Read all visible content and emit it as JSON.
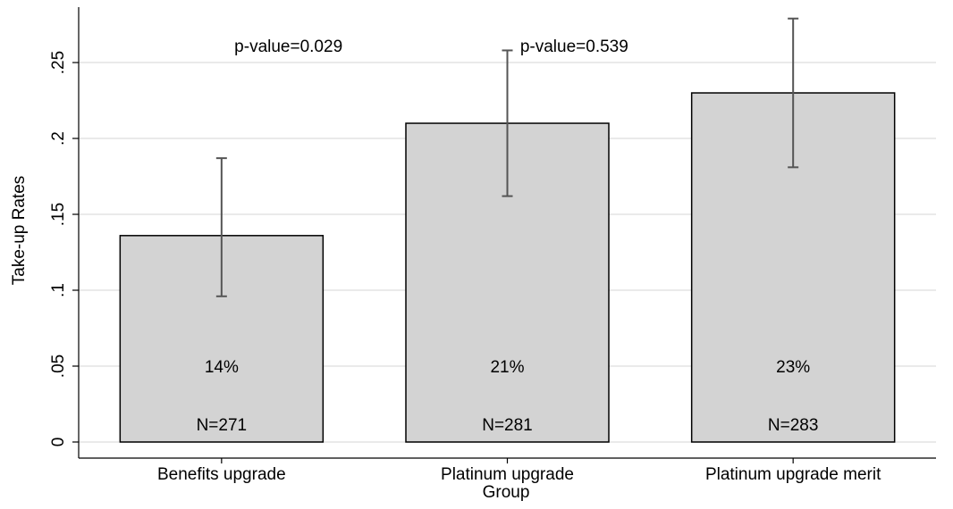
{
  "chart_data": {
    "type": "bar",
    "y_label": "Take-up Rates",
    "x_label": "Group",
    "categories": [
      "Benefits upgrade",
      "Platinum upgrade",
      "Platinum upgrade merit"
    ],
    "values": [
      0.136,
      0.21,
      0.23
    ],
    "value_labels": [
      "14%",
      "21%",
      "23%"
    ],
    "ci_low": [
      0.096,
      0.162,
      0.181
    ],
    "ci_high": [
      0.187,
      0.258,
      0.279
    ],
    "n_labels": [
      "N=271",
      "N=281",
      "N=283"
    ],
    "annotations": [
      "p-value=0.029",
      "p-value=0.539"
    ],
    "color": "#d3d3d3",
    "error_color": "#555555",
    "ylim": [
      -0.0106,
      0.2865
    ],
    "yticks": [
      0,
      {
        "value": 0.05,
        "label": ".05"
      },
      {
        "value": 0.1,
        "label": ".1"
      },
      {
        "value": 0.15,
        "label": ".15"
      },
      {
        "value": 0.2,
        "label": ".2"
      },
      {
        "value": 0.25,
        "label": ".25"
      }
    ],
    "grid": true
  }
}
